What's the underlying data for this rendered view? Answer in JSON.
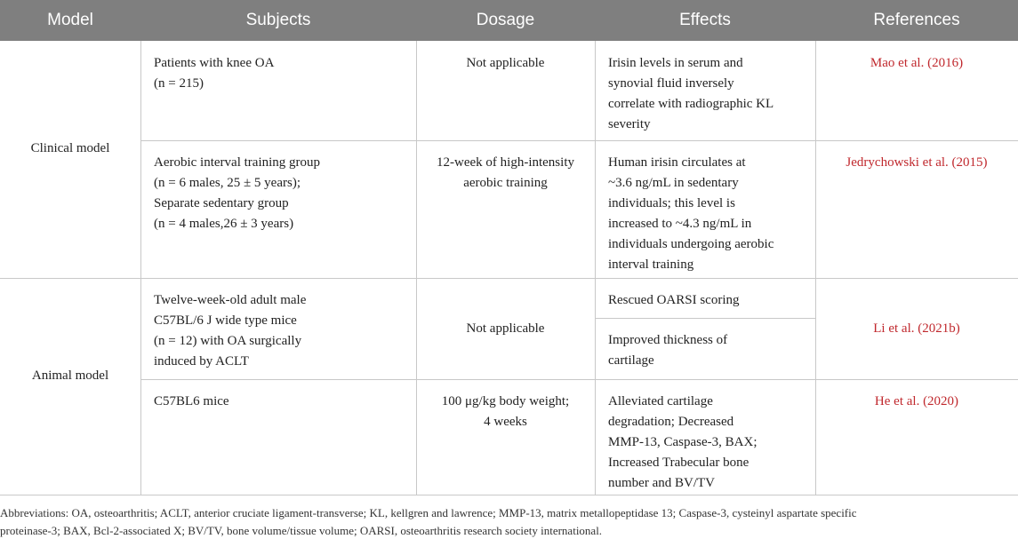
{
  "table": {
    "header": [
      "Model",
      "Subjects",
      "Dosage",
      "Effects",
      "References"
    ],
    "groups": [
      {
        "model": "Clinical model",
        "rows": [
          {
            "subjects": [
              "Patients with knee OA",
              "(n = 215)"
            ],
            "dosage": [
              "Not applicable"
            ],
            "effects": [
              [
                "Irisin levels in serum and",
                "synovial fluid inversely",
                "correlate with radiographic KL",
                "severity"
              ]
            ],
            "reference": "Mao et al. (2016)"
          },
          {
            "subjects": [
              "Aerobic interval training group",
              "(n = 6 males, 25 ± 5 years);",
              "Separate sedentary group",
              "(n = 4 males,26 ± 3 years)"
            ],
            "dosage": [
              "12-week of high-intensity",
              "aerobic training"
            ],
            "effects": [
              [
                "Human irisin circulates at",
                "~3.6 ng/mL in sedentary",
                "individuals; this level is",
                "increased to ~4.3 ng/mL in",
                "individuals undergoing aerobic",
                "interval training"
              ]
            ],
            "reference": "Jedrychowski et al. (2015)"
          }
        ]
      },
      {
        "model": "Animal model",
        "rows": [
          {
            "subjects": [
              "Twelve-week-old adult male",
              "C57BL/6 J wide type mice",
              "(n = 12) with OA surgically",
              "induced by ACLT"
            ],
            "dosage": [
              "Not applicable"
            ],
            "effects": [
              [
                "Rescued OARSI scoring"
              ],
              [
                "Improved thickness of",
                "cartilage"
              ]
            ],
            "reference": "Li et al. (2021b)"
          },
          {
            "subjects": [
              "C57BL6 mice"
            ],
            "dosage": [
              "100 μg/kg body weight;",
              "4 weeks"
            ],
            "effects": [
              [
                "Alleviated cartilage",
                "degradation; Decreased",
                "MMP-13, Caspase-3, BAX;",
                "Increased Trabecular bone",
                "number and BV/TV"
              ]
            ],
            "reference": "He et al. (2020)"
          }
        ]
      }
    ]
  },
  "footnote": [
    "Abbreviations: OA, osteoarthritis; ACLT, anterior cruciate ligament-transverse; KL, kellgren and lawrence; MMP-13, matrix metallopeptidase 13; Caspase-3, cysteinyl aspartate specific",
    "proteinase-3; BAX, Bcl-2-associated X; BV/TV, bone volume/tissue volume; OARSI, osteoarthritis research society international."
  ]
}
